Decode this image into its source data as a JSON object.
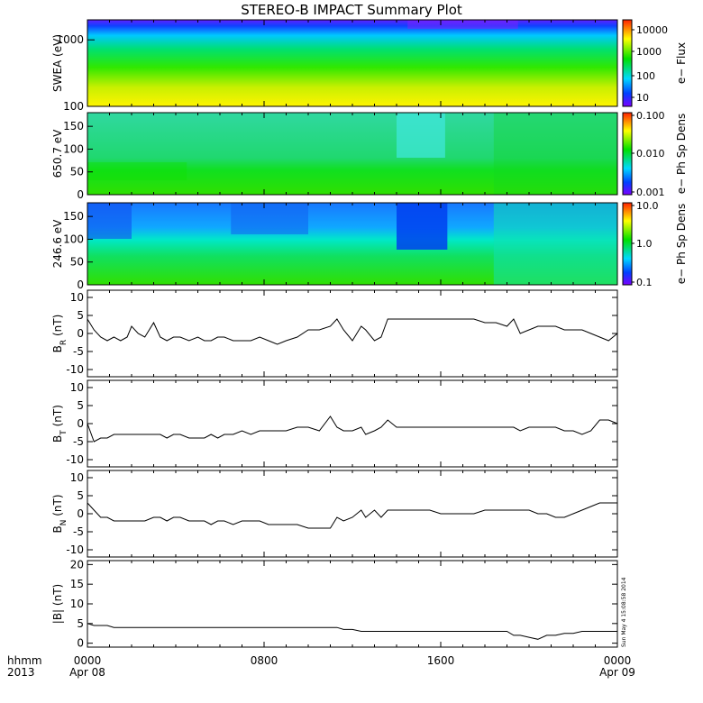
{
  "figure": {
    "title": "STEREO-B IMPACT Summary Plot",
    "corner_labels": [
      "hhmm",
      "2013"
    ],
    "x_tick_labels": [
      {
        "time": "0000",
        "date": "Apr 08"
      },
      {
        "time": "0800",
        "date": ""
      },
      {
        "time": "1600",
        "date": ""
      },
      {
        "time": "0000",
        "date": "Apr 09"
      }
    ],
    "timestamp": "Sun May  4 15:08:58 2014"
  },
  "chart_data": [
    {
      "type": "heatmap",
      "ylabel": "SWEA (eV)",
      "ylim": [
        100,
        2000
      ],
      "y_scale": "log",
      "y_ticks": [
        "1000",
        "100"
      ],
      "colorbar": {
        "label": "e− Flux",
        "ticks": [
          "10000",
          "1000",
          "100",
          "10"
        ],
        "scale": "log"
      }
    },
    {
      "type": "heatmap",
      "ylabel": "650.7 eV",
      "ylim": [
        0,
        180
      ],
      "y_ticks": [
        "150",
        "100",
        "50",
        "0"
      ],
      "colorbar": {
        "label": "e− Ph Sp Dens",
        "ticks": [
          "0.100",
          "0.010",
          "0.001"
        ],
        "scale": "log"
      }
    },
    {
      "type": "heatmap",
      "ylabel": "246.6 eV",
      "ylim": [
        0,
        180
      ],
      "y_ticks": [
        "150",
        "100",
        "50",
        "0"
      ],
      "colorbar": {
        "label": "e− Ph Sp Dens",
        "ticks": [
          "10.0",
          "1.0",
          "0.1"
        ],
        "scale": "log"
      }
    },
    {
      "type": "line",
      "ylabel": "B_R (nT)",
      "ylim": [
        -12,
        12
      ],
      "y_ticks": [
        "10",
        "5",
        "0",
        "-5",
        "-10"
      ],
      "x": [
        0,
        0.3,
        0.6,
        0.9,
        1.2,
        1.5,
        1.8,
        2.0,
        2.3,
        2.6,
        3.0,
        3.3,
        3.6,
        3.9,
        4.2,
        4.6,
        5.0,
        5.3,
        5.6,
        5.9,
        6.2,
        6.6,
        7.0,
        7.4,
        7.8,
        8.2,
        8.6,
        9.0,
        9.5,
        10.0,
        10.5,
        11.0,
        11.3,
        11.6,
        12.0,
        12.4,
        12.6,
        13.0,
        13.3,
        13.6,
        14.0,
        14.4,
        14.7,
        15.0,
        15.5,
        16.0,
        16.5,
        17.0,
        17.5,
        18.0,
        18.5,
        19.0,
        19.3,
        19.6,
        20.0,
        20.4,
        20.8,
        21.2,
        21.6,
        22.0,
        22.4,
        22.8,
        23.2,
        23.6,
        24.0
      ],
      "series": [
        {
          "values": [
            4,
            1,
            -1,
            -2,
            -1,
            -2,
            -1,
            2,
            0,
            -1,
            3,
            -1,
            -2,
            -1,
            -1,
            -2,
            -1,
            -2,
            -2,
            -1,
            -1,
            -2,
            -2,
            -2,
            -1,
            -2,
            -3,
            -2,
            -1,
            1,
            1,
            2,
            4,
            1,
            -2,
            2,
            1,
            -2,
            -1,
            4,
            4,
            4,
            4,
            4,
            4,
            4,
            4,
            4,
            4,
            3,
            3,
            2,
            4,
            0,
            1,
            2,
            2,
            2,
            1,
            1,
            1,
            0,
            -1,
            -2,
            0
          ]
        }
      ]
    },
    {
      "type": "line",
      "ylabel": "B_T (nT)",
      "ylim": [
        -12,
        12
      ],
      "y_ticks": [
        "10",
        "5",
        "0",
        "-5",
        "-10"
      ],
      "x": [
        0,
        0.3,
        0.6,
        0.9,
        1.2,
        1.5,
        1.8,
        2.0,
        2.3,
        2.6,
        3.0,
        3.3,
        3.6,
        3.9,
        4.2,
        4.6,
        5.0,
        5.3,
        5.6,
        5.9,
        6.2,
        6.6,
        7.0,
        7.4,
        7.8,
        8.2,
        8.6,
        9.0,
        9.5,
        10.0,
        10.5,
        11.0,
        11.3,
        11.6,
        12.0,
        12.4,
        12.6,
        13.0,
        13.3,
        13.6,
        14.0,
        14.4,
        14.7,
        15.0,
        15.5,
        16.0,
        16.5,
        17.0,
        17.5,
        18.0,
        18.5,
        19.0,
        19.3,
        19.6,
        20.0,
        20.4,
        20.8,
        21.2,
        21.6,
        22.0,
        22.4,
        22.8,
        23.2,
        23.6,
        24.0
      ],
      "series": [
        {
          "values": [
            0,
            -5,
            -4,
            -4,
            -3,
            -3,
            -3,
            -3,
            -3,
            -3,
            -3,
            -3,
            -4,
            -3,
            -3,
            -4,
            -4,
            -4,
            -3,
            -4,
            -3,
            -3,
            -2,
            -3,
            -2,
            -2,
            -2,
            -2,
            -1,
            -1,
            -2,
            2,
            -1,
            -2,
            -2,
            -1,
            -3,
            -2,
            -1,
            1,
            -1,
            -1,
            -1,
            -1,
            -1,
            -1,
            -1,
            -1,
            -1,
            -1,
            -1,
            -1,
            -1,
            -2,
            -1,
            -1,
            -1,
            -1,
            -2,
            -2,
            -3,
            -2,
            1,
            1,
            0
          ]
        }
      ]
    },
    {
      "type": "line",
      "ylabel": "B_N (nT)",
      "ylim": [
        -12,
        12
      ],
      "y_ticks": [
        "10",
        "5",
        "0",
        "-5",
        "-10"
      ],
      "x": [
        0,
        0.3,
        0.6,
        0.9,
        1.2,
        1.5,
        1.8,
        2.0,
        2.3,
        2.6,
        3.0,
        3.3,
        3.6,
        3.9,
        4.2,
        4.6,
        5.0,
        5.3,
        5.6,
        5.9,
        6.2,
        6.6,
        7.0,
        7.4,
        7.8,
        8.2,
        8.6,
        9.0,
        9.5,
        10.0,
        10.5,
        11.0,
        11.3,
        11.6,
        12.0,
        12.4,
        12.6,
        13.0,
        13.3,
        13.6,
        14.0,
        14.4,
        14.7,
        15.0,
        15.5,
        16.0,
        16.5,
        17.0,
        17.5,
        18.0,
        18.5,
        19.0,
        19.3,
        19.6,
        20.0,
        20.4,
        20.8,
        21.2,
        21.6,
        22.0,
        22.4,
        22.8,
        23.2,
        23.6,
        24.0
      ],
      "series": [
        {
          "values": [
            3,
            1,
            -1,
            -1,
            -2,
            -2,
            -2,
            -2,
            -2,
            -2,
            -1,
            -1,
            -2,
            -1,
            -1,
            -2,
            -2,
            -2,
            -3,
            -2,
            -2,
            -3,
            -2,
            -2,
            -2,
            -3,
            -3,
            -3,
            -3,
            -4,
            -4,
            -4,
            -1,
            -2,
            -1,
            1,
            -1,
            1,
            -1,
            1,
            1,
            1,
            1,
            1,
            1,
            0,
            0,
            0,
            0,
            1,
            1,
            1,
            1,
            1,
            1,
            0,
            0,
            -1,
            -1,
            0,
            1,
            2,
            3,
            3,
            3
          ]
        }
      ]
    },
    {
      "type": "line",
      "ylabel": "|B| (nT)",
      "ylim": [
        -1,
        21
      ],
      "y_ticks": [
        "20",
        "15",
        "10",
        "5",
        "0"
      ],
      "x": [
        0,
        0.3,
        0.6,
        0.9,
        1.2,
        1.5,
        1.8,
        2.0,
        2.3,
        2.6,
        3.0,
        3.3,
        3.6,
        3.9,
        4.2,
        4.6,
        5.0,
        5.3,
        5.6,
        5.9,
        6.2,
        6.6,
        7.0,
        7.4,
        7.8,
        8.2,
        8.6,
        9.0,
        9.5,
        10.0,
        10.5,
        11.0,
        11.3,
        11.6,
        12.0,
        12.4,
        12.6,
        13.0,
        13.3,
        13.6,
        14.0,
        14.4,
        14.7,
        15.0,
        15.5,
        16.0,
        16.5,
        17.0,
        17.5,
        18.0,
        18.5,
        19.0,
        19.3,
        19.6,
        20.0,
        20.4,
        20.8,
        21.2,
        21.6,
        22.0,
        22.4,
        22.8,
        23.2,
        23.6,
        24.0
      ],
      "series": [
        {
          "values": [
            5,
            4.5,
            4.5,
            4.5,
            4,
            4,
            4,
            4,
            4,
            4,
            4,
            4,
            4,
            4,
            4,
            4,
            4,
            4,
            4,
            4,
            4,
            4,
            4,
            4,
            4,
            4,
            4,
            4,
            4,
            4,
            4,
            4,
            4,
            3.5,
            3.5,
            3,
            3,
            3,
            3,
            3,
            3,
            3,
            3,
            3,
            3,
            3,
            3,
            3,
            3,
            3,
            3,
            3,
            2,
            2,
            1.5,
            1,
            2,
            2,
            2.5,
            2.5,
            3,
            3,
            3,
            3,
            3
          ]
        }
      ]
    }
  ]
}
